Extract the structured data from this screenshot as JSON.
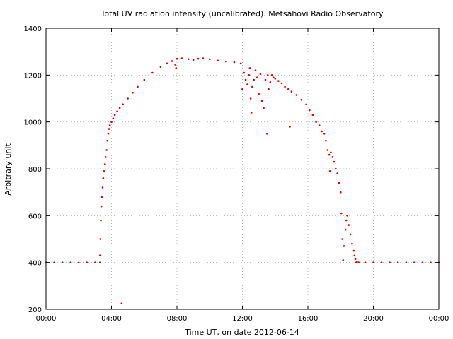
{
  "chart_data": {
    "type": "scatter",
    "title": "Total UV radiation intensity (uncalibrated). Metsähovi Radio Observatory",
    "xlabel": "Time UT, on date 2012-06-14",
    "ylabel": "Arbitrary unit",
    "x_unit": "hours UT",
    "xlim": [
      0,
      24
    ],
    "ylim": [
      200,
      1400
    ],
    "x_ticks": [
      {
        "value": 0,
        "label": "00:00"
      },
      {
        "value": 4,
        "label": "04:00"
      },
      {
        "value": 8,
        "label": "08:00"
      },
      {
        "value": 12,
        "label": "12:00"
      },
      {
        "value": 16,
        "label": "16:00"
      },
      {
        "value": 20,
        "label": "20:00"
      },
      {
        "value": 24,
        "label": "00:00"
      }
    ],
    "y_ticks": [
      200,
      400,
      600,
      800,
      1000,
      1200,
      1400
    ],
    "grid": true,
    "marker_color": "#e00000",
    "series": [
      {
        "name": "",
        "points": [
          [
            0.0,
            400
          ],
          [
            0.5,
            400
          ],
          [
            1.0,
            400
          ],
          [
            1.5,
            400
          ],
          [
            2.0,
            400
          ],
          [
            2.5,
            400
          ],
          [
            3.0,
            400
          ],
          [
            3.3,
            400
          ],
          [
            3.3,
            430
          ],
          [
            3.32,
            500
          ],
          [
            3.35,
            580
          ],
          [
            3.38,
            640
          ],
          [
            3.42,
            680
          ],
          [
            3.46,
            720
          ],
          [
            3.5,
            760
          ],
          [
            3.55,
            790
          ],
          [
            3.6,
            820
          ],
          [
            3.65,
            850
          ],
          [
            3.7,
            880
          ],
          [
            3.75,
            920
          ],
          [
            3.8,
            950
          ],
          [
            3.85,
            970
          ],
          [
            3.9,
            985
          ],
          [
            4.0,
            1000
          ],
          [
            4.1,
            1015
          ],
          [
            4.2,
            1030
          ],
          [
            4.35,
            1045
          ],
          [
            4.5,
            1060
          ],
          [
            4.62,
            225
          ],
          [
            4.7,
            1075
          ],
          [
            5.0,
            1100
          ],
          [
            5.3,
            1125
          ],
          [
            5.6,
            1150
          ],
          [
            6.0,
            1180
          ],
          [
            6.5,
            1210
          ],
          [
            7.0,
            1235
          ],
          [
            7.4,
            1250
          ],
          [
            7.7,
            1260
          ],
          [
            7.9,
            1245
          ],
          [
            7.95,
            1230
          ],
          [
            8.0,
            1270
          ],
          [
            8.3,
            1272
          ],
          [
            8.7,
            1268
          ],
          [
            9.0,
            1265
          ],
          [
            9.3,
            1270
          ],
          [
            9.6,
            1272
          ],
          [
            10.0,
            1268
          ],
          [
            10.5,
            1262
          ],
          [
            11.0,
            1258
          ],
          [
            11.5,
            1255
          ],
          [
            11.9,
            1250
          ],
          [
            12.0,
            1140
          ],
          [
            12.1,
            1210
          ],
          [
            12.2,
            1180
          ],
          [
            12.3,
            1160
          ],
          [
            12.4,
            1200
          ],
          [
            12.45,
            1230
          ],
          [
            12.5,
            1100
          ],
          [
            12.55,
            1040
          ],
          [
            12.6,
            1150
          ],
          [
            12.7,
            1180
          ],
          [
            12.8,
            1220
          ],
          [
            12.9,
            1190
          ],
          [
            13.0,
            1120
          ],
          [
            13.1,
            1205
          ],
          [
            13.2,
            1090
          ],
          [
            13.3,
            1060
          ],
          [
            13.4,
            1180
          ],
          [
            13.5,
            950
          ],
          [
            13.55,
            1200
          ],
          [
            13.6,
            1140
          ],
          [
            13.7,
            1170
          ],
          [
            13.8,
            1200
          ],
          [
            13.9,
            1190
          ],
          [
            14.0,
            1185
          ],
          [
            14.2,
            1175
          ],
          [
            14.4,
            1165
          ],
          [
            14.6,
            1150
          ],
          [
            14.8,
            1140
          ],
          [
            14.9,
            980
          ],
          [
            15.0,
            1130
          ],
          [
            15.3,
            1115
          ],
          [
            15.6,
            1095
          ],
          [
            15.9,
            1075
          ],
          [
            16.1,
            1050
          ],
          [
            16.3,
            1030
          ],
          [
            16.5,
            1000
          ],
          [
            16.7,
            985
          ],
          [
            16.85,
            960
          ],
          [
            17.0,
            950
          ],
          [
            17.1,
            920
          ],
          [
            17.2,
            880
          ],
          [
            17.3,
            860
          ],
          [
            17.35,
            790
          ],
          [
            17.4,
            870
          ],
          [
            17.5,
            850
          ],
          [
            17.6,
            830
          ],
          [
            17.7,
            800
          ],
          [
            17.8,
            780
          ],
          [
            17.9,
            740
          ],
          [
            18.0,
            700
          ],
          [
            18.05,
            610
          ],
          [
            18.1,
            500
          ],
          [
            18.15,
            410
          ],
          [
            18.2,
            470
          ],
          [
            18.3,
            540
          ],
          [
            18.35,
            580
          ],
          [
            18.4,
            600
          ],
          [
            18.5,
            560
          ],
          [
            18.6,
            520
          ],
          [
            18.7,
            480
          ],
          [
            18.8,
            450
          ],
          [
            18.85,
            430
          ],
          [
            18.9,
            415
          ],
          [
            18.95,
            400
          ],
          [
            19.0,
            405
          ],
          [
            19.1,
            400
          ],
          [
            19.5,
            400
          ],
          [
            20.0,
            400
          ],
          [
            20.5,
            400
          ],
          [
            21.0,
            400
          ],
          [
            21.5,
            400
          ],
          [
            22.0,
            400
          ],
          [
            22.5,
            400
          ],
          [
            23.0,
            400
          ],
          [
            23.5,
            400
          ],
          [
            24.0,
            400
          ]
        ]
      }
    ]
  }
}
